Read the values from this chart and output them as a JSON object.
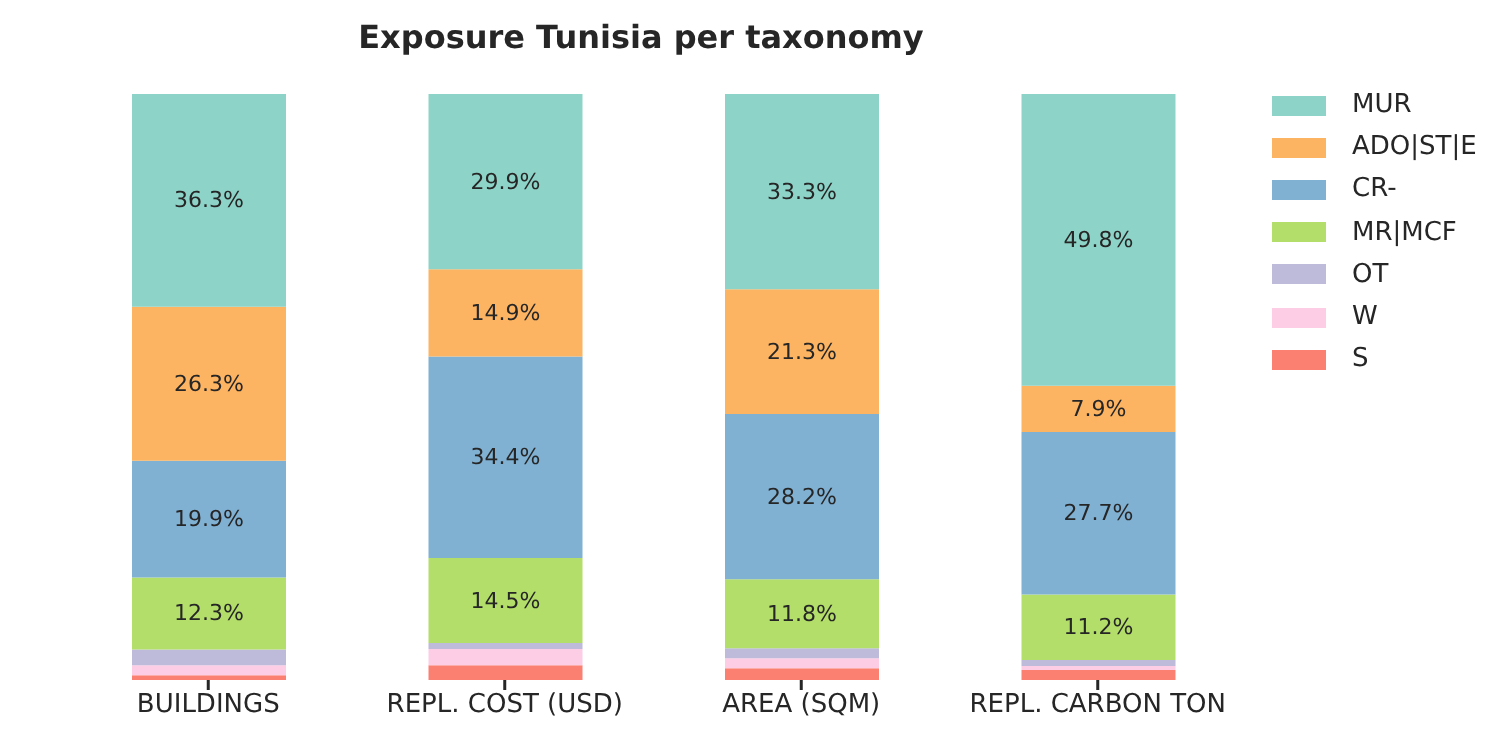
{
  "chart_data": {
    "type": "bar",
    "title": "Exposure Tunisia per taxonomy",
    "categories": [
      "BUILDINGS",
      "REPL. COST (USD)",
      "AREA (SQM)",
      "REPL. CARBON TON"
    ],
    "stacked": true,
    "legend": "top right",
    "grid": false,
    "tick_labels": "x",
    "series": [
      {
        "name": "S",
        "color": "#fb8072",
        "values": [
          0.8,
          2.5,
          2.0,
          1.7
        ],
        "value_labels": [
          null,
          null,
          null,
          null
        ]
      },
      {
        "name": "W",
        "color": "#fccde5",
        "values": [
          1.7,
          2.8,
          1.7,
          0.7
        ],
        "value_labels": [
          null,
          null,
          null,
          null
        ]
      },
      {
        "name": "OT",
        "color": "#bebada",
        "values": [
          2.7,
          1.0,
          1.7,
          1.0
        ],
        "value_labels": [
          null,
          null,
          null,
          null
        ]
      },
      {
        "name": "MR|MCF",
        "color": "#b3de69",
        "values": [
          12.3,
          14.5,
          11.8,
          11.2
        ],
        "value_labels": [
          "12.3%",
          "14.5%",
          "11.8%",
          "11.2%"
        ]
      },
      {
        "name": "CR-",
        "color": "#80b1d3",
        "values": [
          19.9,
          34.4,
          28.2,
          27.7
        ],
        "value_labels": [
          "19.9%",
          "34.4%",
          "28.2%",
          "27.7%"
        ]
      },
      {
        "name": "ADO|ST|E",
        "color": "#fdb462",
        "values": [
          26.3,
          14.9,
          21.3,
          7.9
        ],
        "value_labels": [
          "26.3%",
          "14.9%",
          "21.3%",
          "7.9%"
        ]
      },
      {
        "name": "MUR",
        "color": "#8dd3c7",
        "values": [
          36.3,
          29.9,
          33.3,
          49.8
        ],
        "value_labels": [
          "36.3%",
          "29.9%",
          "33.3%",
          "49.8%"
        ]
      }
    ]
  }
}
